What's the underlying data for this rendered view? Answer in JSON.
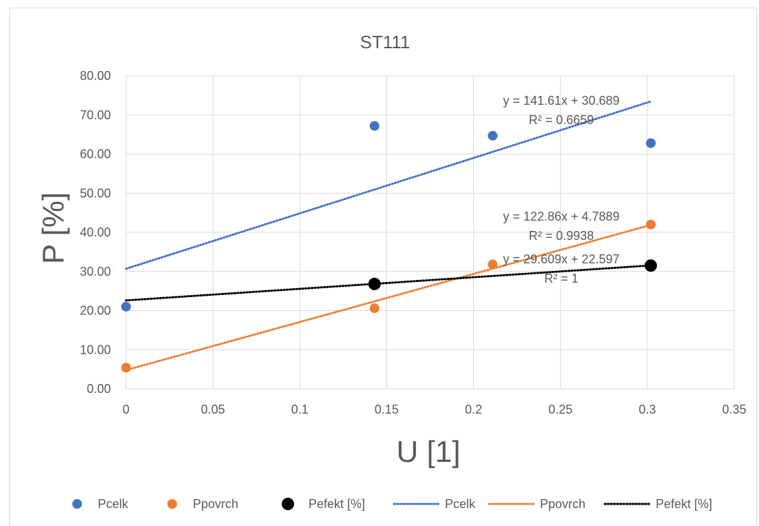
{
  "chart_data": {
    "type": "scatter",
    "title": "ST111",
    "xlabel": "U [1]",
    "ylabel": "P [%]",
    "xlim": [
      0,
      0.35
    ],
    "ylim": [
      0,
      80
    ],
    "x_ticks": [
      0,
      0.05,
      0.1,
      0.15,
      0.2,
      0.25,
      0.3,
      0.35
    ],
    "x_tick_labels": [
      "0",
      "0.05",
      "0.1",
      "0.15",
      "0.2",
      "0.25",
      "0.3",
      "0.35"
    ],
    "y_ticks": [
      0,
      10,
      20,
      30,
      40,
      50,
      60,
      70,
      80
    ],
    "y_tick_labels": [
      "0.00",
      "10.00",
      "20.00",
      "30.00",
      "40.00",
      "50.00",
      "60.00",
      "70.00",
      "80.00"
    ],
    "grid": true,
    "legend_position": "bottom",
    "series": [
      {
        "name": "Pcelk",
        "color": "#4472c4",
        "marker_size": "normal",
        "x": [
          0,
          0.143,
          0.211,
          0.302
        ],
        "y": [
          21.0,
          67.2,
          64.7,
          62.8
        ]
      },
      {
        "name": "Ppovrch",
        "color": "#ed7d31",
        "marker_size": "normal",
        "x": [
          0,
          0.143,
          0.211,
          0.302
        ],
        "y": [
          5.4,
          20.6,
          31.8,
          42.0
        ]
      },
      {
        "name": "Pefekt [%]",
        "color": "#000000",
        "marker_size": "large",
        "x": [
          0.143,
          0.302
        ],
        "y": [
          26.8,
          31.5
        ]
      }
    ],
    "trendlines": [
      {
        "name": "Pcelk",
        "color": "#4472c4",
        "slope": 141.61,
        "intercept": 30.689,
        "x_range": [
          0,
          0.302
        ],
        "equation": "y = 141.61x + 30.689",
        "r2": "R² = 0.6659"
      },
      {
        "name": "Ppovrch",
        "color": "#ed7d31",
        "slope": 122.86,
        "intercept": 4.7889,
        "x_range": [
          0,
          0.302
        ],
        "equation": "y = 122.86x + 4.7889",
        "r2": "R² = 0.9938"
      },
      {
        "name": "Pefekt [%]",
        "color": "#000000",
        "slope": 29.609,
        "intercept": 22.597,
        "x_range": [
          0,
          0.302
        ],
        "equation": "y = 29.609x + 22.597",
        "r2": "R² = 1"
      }
    ],
    "legend": [
      {
        "label": "Pcelk",
        "kind": "marker",
        "color": "#4472c4"
      },
      {
        "label": "Ppovrch",
        "kind": "marker",
        "color": "#ed7d31"
      },
      {
        "label": "Pefekt [%]",
        "kind": "marker",
        "color": "#000000"
      },
      {
        "label": "Pcelk",
        "kind": "line",
        "color": "#4472c4"
      },
      {
        "label": "Ppovrch",
        "kind": "line",
        "color": "#ed7d31"
      },
      {
        "label": "Pefekt [%]",
        "kind": "line",
        "color": "#000000"
      }
    ]
  }
}
